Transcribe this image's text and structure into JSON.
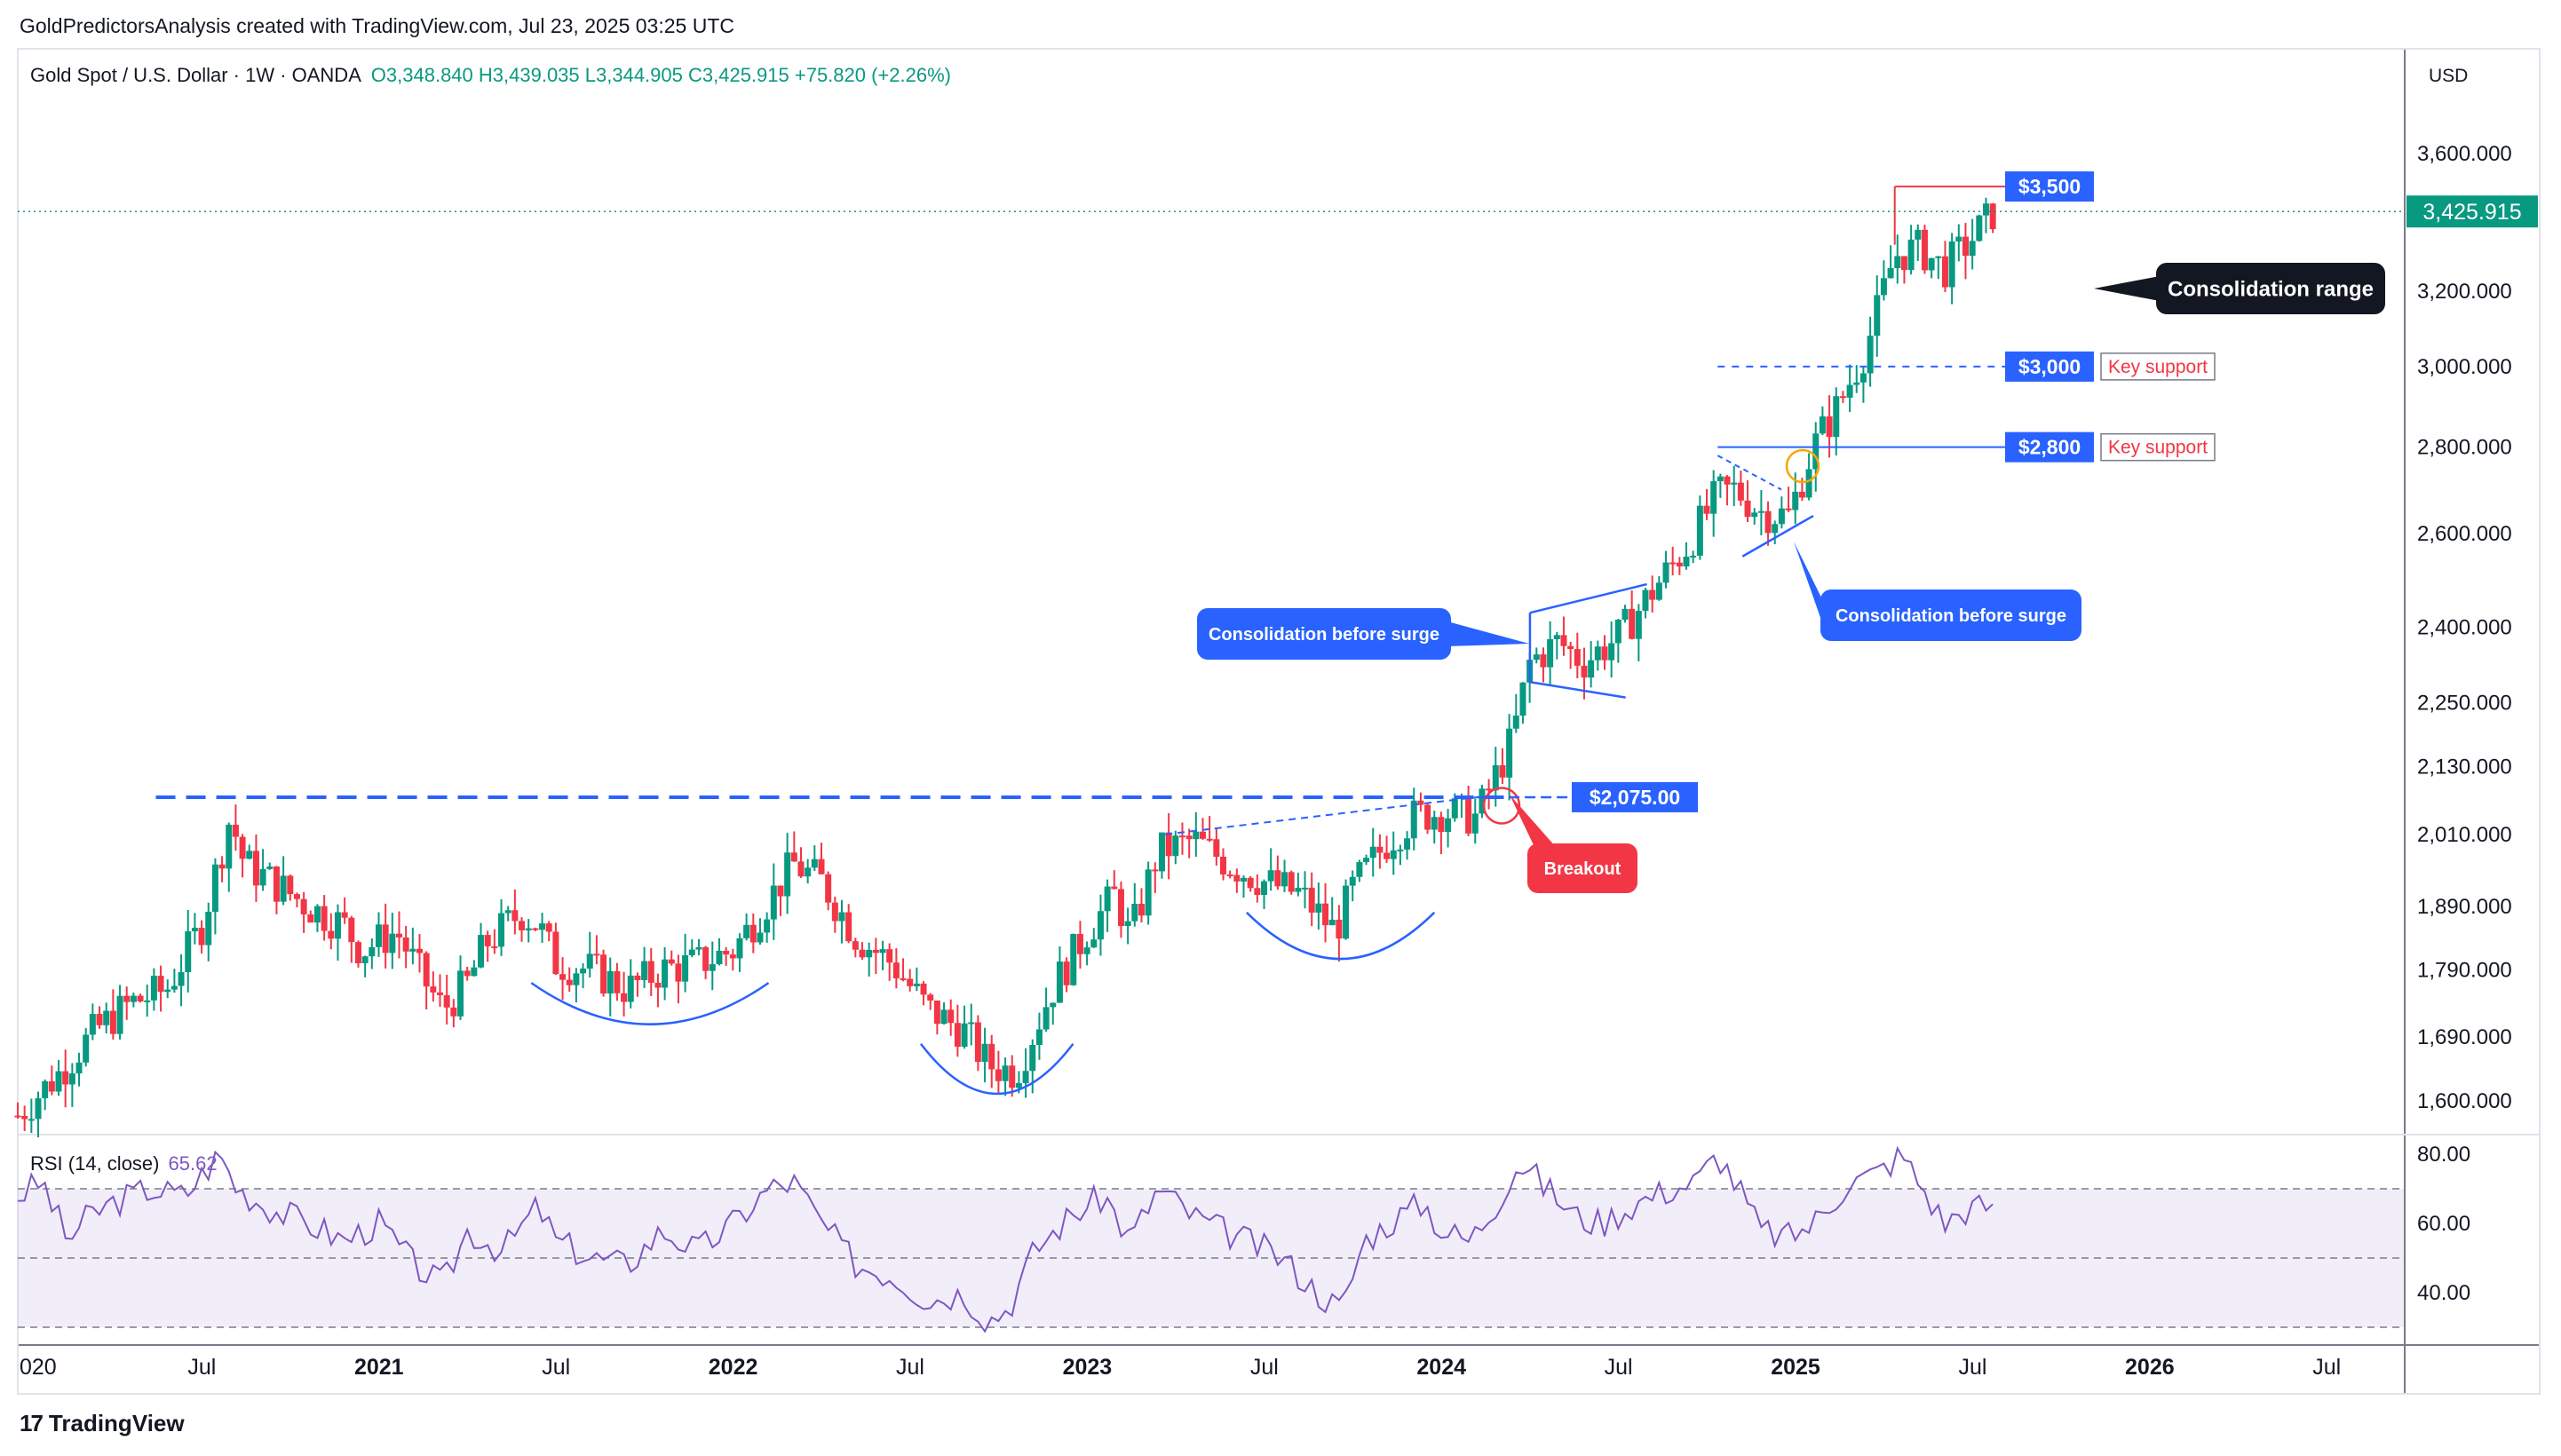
{
  "header": {
    "credit": "GoldPredictorsAnalysis created with TradingView.com, Jul 23, 2025 03:25 UTC",
    "symbol": "Gold Spot / U.S. Dollar · 1W · OANDA",
    "ohlc": "O3,348.840  H3,439.035  L3,344.905  C3,425.915  +75.820 (+2.26%)",
    "currency": "USD"
  },
  "footer": {
    "logo": "TradingView",
    "logo_mark": "17"
  },
  "colors": {
    "up": "#089981",
    "down": "#f23645",
    "accent_blue": "#2962ff",
    "rsi": "#7e57c2",
    "price_tag": "#089981"
  },
  "chart_data": {
    "type": "candlestick",
    "timeframe": "1W",
    "price_axis": {
      "ticks": [
        "3,600.000",
        "3,200.000",
        "3,000.000",
        "2,800.000",
        "2,600.000",
        "2,400.000",
        "2,250.000",
        "2,130.000",
        "2,010.000",
        "1,890.000",
        "1,790.000",
        "1,690.000",
        "1,600.000"
      ],
      "tick_values": [
        3600,
        3200,
        3000,
        2800,
        2600,
        2400,
        2250,
        2130,
        2010,
        1890,
        1790,
        1690,
        1600
      ],
      "scale": "log",
      "last_price": "3,425.915"
    },
    "time_axis": {
      "labels": [
        "020",
        "Jul",
        "2021",
        "Jul",
        "2022",
        "Jul",
        "2023",
        "Jul",
        "2024",
        "Jul",
        "2025",
        "Jul",
        "2026",
        "Jul"
      ],
      "label_t": [
        2020.0,
        2020.5,
        2021.0,
        2021.5,
        2022.0,
        2022.5,
        2023.0,
        2023.5,
        2024.0,
        2024.5,
        2025.0,
        2025.5,
        2026.0,
        2026.5
      ],
      "bold": [
        false,
        false,
        true,
        false,
        true,
        false,
        true,
        false,
        true,
        false,
        true,
        false,
        true,
        false
      ]
    },
    "price_path": [
      [
        2019.98,
        1580
      ],
      [
        2020.1,
        1640
      ],
      [
        2020.2,
        1700
      ],
      [
        2020.3,
        1740
      ],
      [
        2020.4,
        1760
      ],
      [
        2020.5,
        1860
      ],
      [
        2020.58,
        2040
      ],
      [
        2020.62,
        1960
      ],
      [
        2020.7,
        1930
      ],
      [
        2020.8,
        1890
      ],
      [
        2020.9,
        1860
      ],
      [
        2020.95,
        1820
      ],
      [
        2021.05,
        1850
      ],
      [
        2021.12,
        1780
      ],
      [
        2021.18,
        1730
      ],
      [
        2021.25,
        1770
      ],
      [
        2021.3,
        1830
      ],
      [
        2021.4,
        1880
      ],
      [
        2021.45,
        1860
      ],
      [
        2021.5,
        1800
      ],
      [
        2021.6,
        1790
      ],
      [
        2021.7,
        1760
      ],
      [
        2021.8,
        1790
      ],
      [
        2021.9,
        1800
      ],
      [
        2022.0,
        1820
      ],
      [
        2022.1,
        1900
      ],
      [
        2022.17,
        1960
      ],
      [
        2022.25,
        1930
      ],
      [
        2022.35,
        1840
      ],
      [
        2022.45,
        1800
      ],
      [
        2022.55,
        1730
      ],
      [
        2022.65,
        1700
      ],
      [
        2022.72,
        1650
      ],
      [
        2022.8,
        1640
      ],
      [
        2022.9,
        1760
      ],
      [
        2023.0,
        1850
      ],
      [
        2023.08,
        1910
      ],
      [
        2023.12,
        1840
      ],
      [
        2023.2,
        1980
      ],
      [
        2023.3,
        2000
      ],
      [
        2023.4,
        1960
      ],
      [
        2023.5,
        1930
      ],
      [
        2023.6,
        1910
      ],
      [
        2023.7,
        1850
      ],
      [
        2023.75,
        1920
      ],
      [
        2023.85,
        2000
      ],
      [
        2023.92,
        2040
      ],
      [
        2024.0,
        2050
      ],
      [
        2024.1,
        2040
      ],
      [
        2024.2,
        2180
      ],
      [
        2024.25,
        2330
      ],
      [
        2024.33,
        2370
      ],
      [
        2024.4,
        2330
      ],
      [
        2024.5,
        2380
      ],
      [
        2024.6,
        2480
      ],
      [
        2024.7,
        2580
      ],
      [
        2024.78,
        2690
      ],
      [
        2024.83,
        2700
      ],
      [
        2024.9,
        2650
      ],
      [
        2024.98,
        2640
      ],
      [
        2025.05,
        2800
      ],
      [
        2025.12,
        2900
      ],
      [
        2025.2,
        3050
      ],
      [
        2025.28,
        3300
      ],
      [
        2025.35,
        3320
      ],
      [
        2025.42,
        3260
      ],
      [
        2025.5,
        3350
      ],
      [
        2025.56,
        3425.915
      ]
    ],
    "levels": [
      {
        "label": "$3,500",
        "value": 3500,
        "note": ""
      },
      {
        "label": "$3,000",
        "value": 3000,
        "note": "Key support"
      },
      {
        "label": "$2,800",
        "value": 2800,
        "note": "Key support"
      },
      {
        "label": "$2,075.00",
        "value": 2075,
        "note": ""
      }
    ],
    "annotations": [
      {
        "text": "Consolidation range",
        "style": "dark"
      },
      {
        "text": "Consolidation before surge",
        "style": "blue"
      },
      {
        "text": "Consolidation before surge",
        "style": "blue"
      },
      {
        "text": "Breakout",
        "style": "red"
      }
    ],
    "rsi": {
      "label": "RSI (14, close)",
      "value": "65.62",
      "ticks": [
        "80.00",
        "60.00",
        "40.00"
      ],
      "tick_values": [
        80,
        60,
        40
      ],
      "upper_band": 70,
      "mid_band": 50,
      "lower_band": 30,
      "series": [
        [
          2019.98,
          68
        ],
        [
          2020.05,
          72
        ],
        [
          2020.12,
          55
        ],
        [
          2020.18,
          62
        ],
        [
          2020.25,
          66
        ],
        [
          2020.35,
          70
        ],
        [
          2020.45,
          68
        ],
        [
          2020.55,
          80
        ],
        [
          2020.6,
          70
        ],
        [
          2020.7,
          64
        ],
        [
          2020.8,
          60
        ],
        [
          2020.9,
          55
        ],
        [
          2021.0,
          60
        ],
        [
          2021.1,
          48
        ],
        [
          2021.18,
          42
        ],
        [
          2021.25,
          58
        ],
        [
          2021.35,
          52
        ],
        [
          2021.45,
          65
        ],
        [
          2021.5,
          55
        ],
        [
          2021.6,
          50
        ],
        [
          2021.7,
          48
        ],
        [
          2021.8,
          58
        ],
        [
          2021.9,
          52
        ],
        [
          2022.0,
          60
        ],
        [
          2022.1,
          70
        ],
        [
          2022.17,
          72
        ],
        [
          2022.25,
          60
        ],
        [
          2022.35,
          48
        ],
        [
          2022.45,
          45
        ],
        [
          2022.55,
          38
        ],
        [
          2022.65,
          40
        ],
        [
          2022.72,
          32
        ],
        [
          2022.78,
          36
        ],
        [
          2022.85,
          52
        ],
        [
          2022.95,
          62
        ],
        [
          2023.05,
          68
        ],
        [
          2023.12,
          55
        ],
        [
          2023.2,
          70
        ],
        [
          2023.3,
          62
        ],
        [
          2023.38,
          58
        ],
        [
          2023.45,
          55
        ],
        [
          2023.55,
          50
        ],
        [
          2023.65,
          40
        ],
        [
          2023.72,
          35
        ],
        [
          2023.78,
          55
        ],
        [
          2023.88,
          62
        ],
        [
          2023.95,
          66
        ],
        [
          2024.0,
          58
        ],
        [
          2024.08,
          55
        ],
        [
          2024.15,
          65
        ],
        [
          2024.22,
          78
        ],
        [
          2024.3,
          70
        ],
        [
          2024.38,
          62
        ],
        [
          2024.45,
          60
        ],
        [
          2024.55,
          66
        ],
        [
          2024.65,
          70
        ],
        [
          2024.72,
          72
        ],
        [
          2024.78,
          80
        ],
        [
          2024.84,
          70
        ],
        [
          2024.9,
          58
        ],
        [
          2024.98,
          56
        ],
        [
          2025.05,
          60
        ],
        [
          2025.15,
          72
        ],
        [
          2025.22,
          74
        ],
        [
          2025.3,
          80
        ],
        [
          2025.36,
          70
        ],
        [
          2025.42,
          60
        ],
        [
          2025.48,
          64
        ],
        [
          2025.56,
          65.62
        ]
      ]
    }
  }
}
